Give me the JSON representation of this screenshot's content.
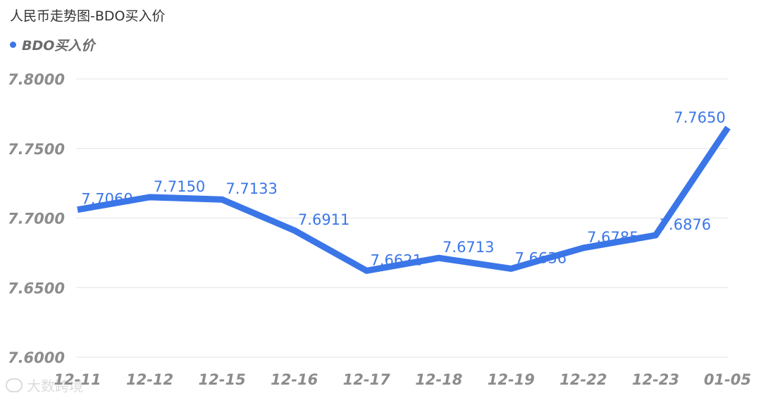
{
  "header": {
    "title": "人民币走势图-BDO买入价"
  },
  "colors": {
    "series": "#3b76e8",
    "grid": "#e3e3e3",
    "axis_text": "#8c8c8c"
  },
  "watermark": {
    "text": "大数跨境"
  },
  "chart_data": {
    "type": "line",
    "title": "人民币走势图-BDO买入价",
    "legend_position": "top-left",
    "grid": true,
    "categories": [
      "12-11",
      "12-12",
      "12-15",
      "12-16",
      "12-17",
      "12-18",
      "12-19",
      "12-22",
      "12-23",
      "01-05"
    ],
    "series": [
      {
        "name": "BDO买入价",
        "values": [
          7.706,
          7.715,
          7.7133,
          7.6911,
          7.6621,
          7.6713,
          7.6636,
          7.6785,
          7.6876,
          7.765
        ],
        "labels": [
          "7.7060",
          "7.7150",
          "7.7133",
          "7.6911",
          "7.6621",
          "7.6713",
          "7.6636",
          "7.6785",
          "7.6876",
          "7.7650"
        ]
      }
    ],
    "ylim": [
      7.6,
      7.8
    ],
    "yticks": [
      "7.6000",
      "7.6500",
      "7.7000",
      "7.7500",
      "7.8000"
    ]
  }
}
